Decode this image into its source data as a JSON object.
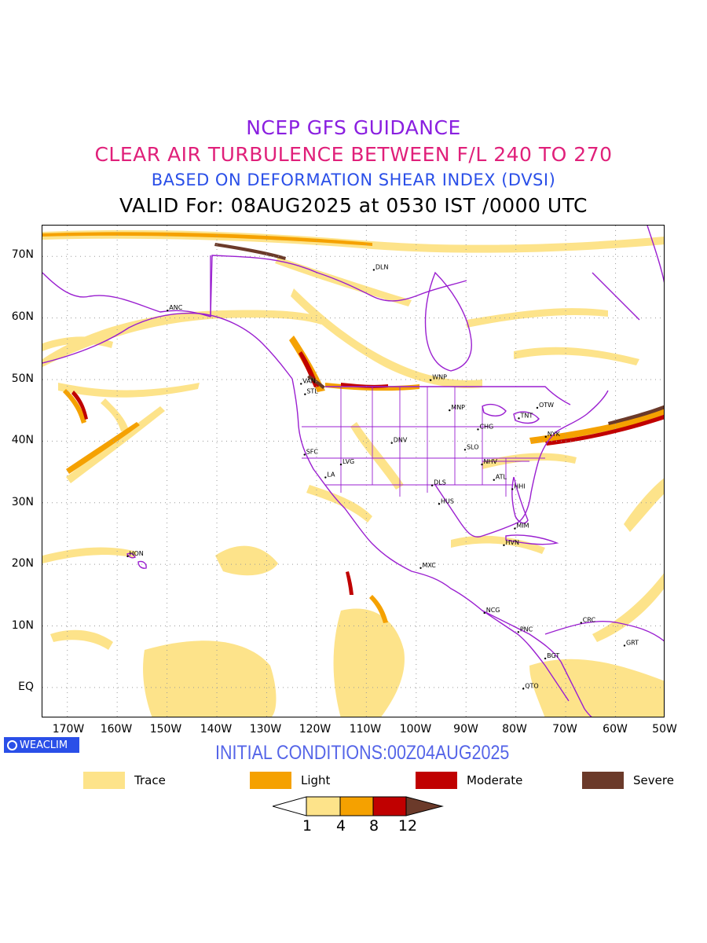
{
  "titles": {
    "line1": "NCEP GFS GUIDANCE",
    "line2": "CLEAR AIR TURBULENCE BETWEEN F/L 240 TO 270",
    "line3": "BASED ON DEFORMATION SHEAR INDEX (DVSI)",
    "line4": "VALID For: 08AUG2025 at 0530 IST /0000 UTC"
  },
  "colors": {
    "line1": "#8a1fe0",
    "line2": "#e0207a",
    "line3": "#2a4fe8",
    "coastline": "#9a1fd0",
    "trace": "#fde38a",
    "light": "#f5a100",
    "moderate": "#c00000",
    "severe": "#6b3a2a"
  },
  "map": {
    "lat_labels": [
      "70N",
      "60N",
      "50N",
      "40N",
      "30N",
      "20N",
      "10N",
      "EQ"
    ],
    "lon_labels": [
      "170W",
      "160W",
      "150W",
      "140W",
      "130W",
      "120W",
      "110W",
      "100W",
      "90W",
      "80W",
      "70W",
      "60W",
      "50W"
    ],
    "stations": [
      {
        "code": "DLN",
        "lon": -108.5,
        "lat": 67.8
      },
      {
        "code": "ANC",
        "lon": -149.9,
        "lat": 61.2
      },
      {
        "code": "VAN",
        "lon": -123.1,
        "lat": 49.3
      },
      {
        "code": "STL",
        "lon": -122.3,
        "lat": 47.6
      },
      {
        "code": "WNP",
        "lon": -97.1,
        "lat": 49.9
      },
      {
        "code": "OTW",
        "lon": -75.7,
        "lat": 45.4
      },
      {
        "code": "TNT",
        "lon": -79.4,
        "lat": 43.7
      },
      {
        "code": "MNP",
        "lon": -93.3,
        "lat": 45.0
      },
      {
        "code": "CHG",
        "lon": -87.6,
        "lat": 41.9
      },
      {
        "code": "NYK",
        "lon": -74.0,
        "lat": 40.7
      },
      {
        "code": "DNV",
        "lon": -104.9,
        "lat": 39.7
      },
      {
        "code": "SFC",
        "lon": -122.4,
        "lat": 37.8
      },
      {
        "code": "SLO",
        "lon": -90.2,
        "lat": 38.6
      },
      {
        "code": "LVG",
        "lon": -115.1,
        "lat": 36.2
      },
      {
        "code": "NHV",
        "lon": -86.8,
        "lat": 36.2
      },
      {
        "code": "LA",
        "lon": -118.2,
        "lat": 34.1
      },
      {
        "code": "ATL",
        "lon": -84.4,
        "lat": 33.7
      },
      {
        "code": "DLS",
        "lon": -96.8,
        "lat": 32.8
      },
      {
        "code": "HHI",
        "lon": -80.7,
        "lat": 32.2
      },
      {
        "code": "HUS",
        "lon": -95.4,
        "lat": 29.8
      },
      {
        "code": "MIM",
        "lon": -80.2,
        "lat": 25.8
      },
      {
        "code": "HVN",
        "lon": -82.4,
        "lat": 23.1
      },
      {
        "code": "HON",
        "lon": -157.9,
        "lat": 21.3
      },
      {
        "code": "MXC",
        "lon": -99.1,
        "lat": 19.4
      },
      {
        "code": "NCG",
        "lon": -86.3,
        "lat": 12.1
      },
      {
        "code": "CRC",
        "lon": -66.9,
        "lat": 10.5
      },
      {
        "code": "PNC",
        "lon": -79.5,
        "lat": 9.0
      },
      {
        "code": "GRT",
        "lon": -58.2,
        "lat": 6.8
      },
      {
        "code": "BGT",
        "lon": -74.1,
        "lat": 4.7
      },
      {
        "code": "QTO",
        "lon": -78.5,
        "lat": -0.2
      }
    ]
  },
  "watermark": "WEACLIM",
  "initial_conditions": "INITIAL CONDITIONS:00Z04AUG2025",
  "legend": [
    {
      "label": "Trace",
      "color": "#fde38a"
    },
    {
      "label": "Light",
      "color": "#f5a100"
    },
    {
      "label": "Moderate",
      "color": "#c00000"
    },
    {
      "label": "Severe",
      "color": "#6b3a2a"
    }
  ],
  "colorbar_ticks": [
    "1",
    "4",
    "8",
    "12"
  ]
}
